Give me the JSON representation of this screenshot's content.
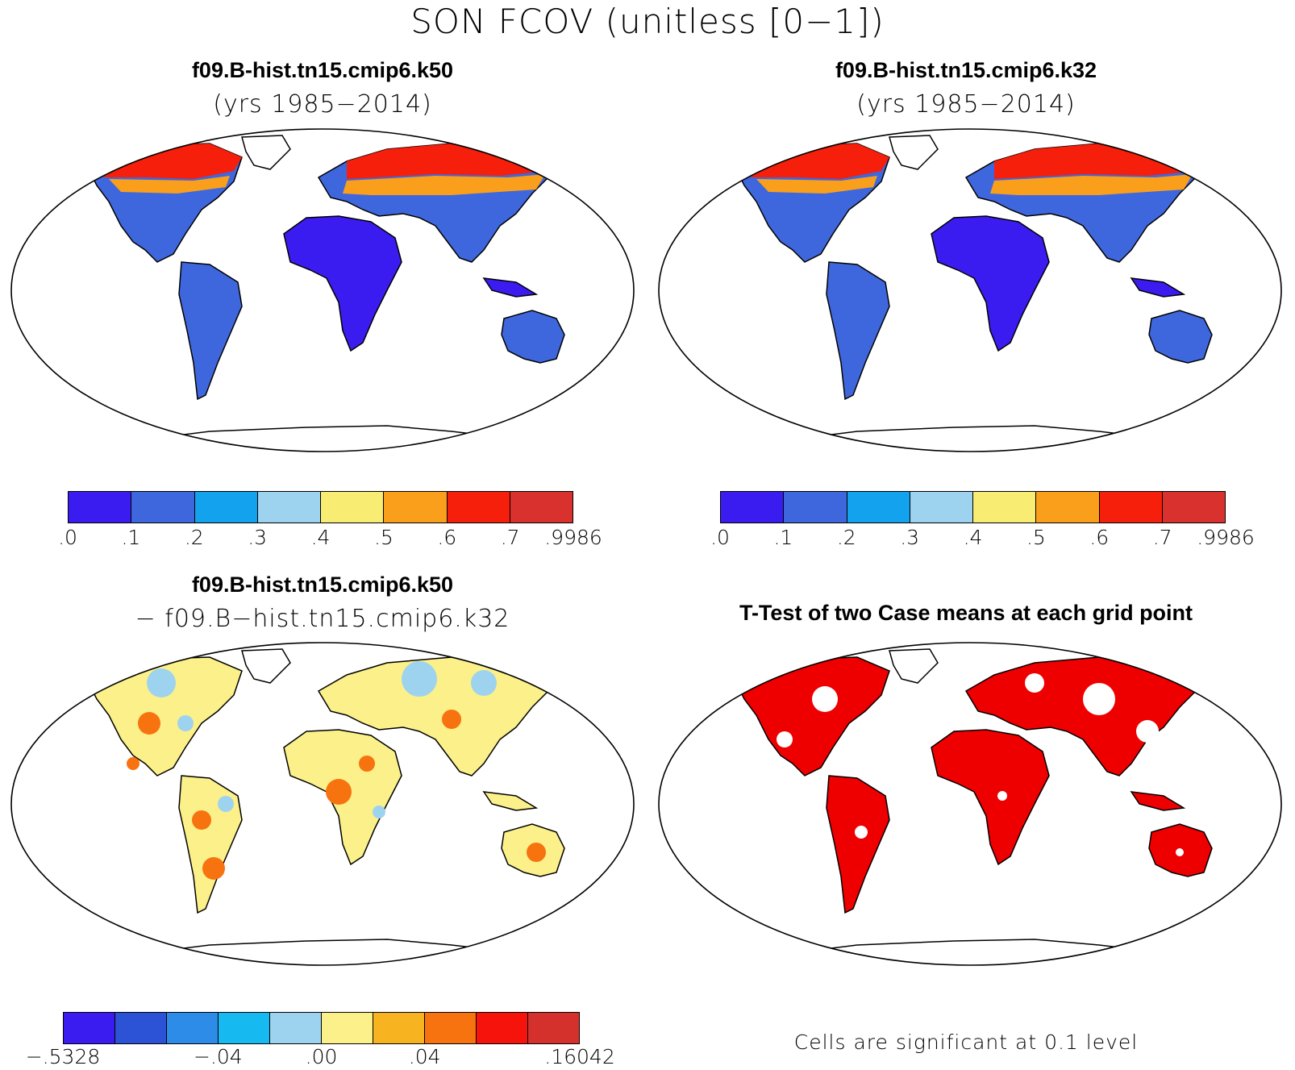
{
  "figure": {
    "title": "SON FCOV (unitless [0−1])"
  },
  "panels": {
    "top_left": {
      "title": "f09.B-hist.tn15.cmip6.k50",
      "subtitle": "(yrs 1985−2014)"
    },
    "top_right": {
      "title": "f09.B-hist.tn15.cmip6.k32",
      "subtitle": "(yrs 1985−2014)"
    },
    "bottom_left": {
      "title": "f09.B-hist.tn15.cmip6.k50",
      "subtitle": "− f09.B−hist.tn15.cmip6.k32"
    },
    "bottom_right": {
      "title": "T-Test of two Case means at each grid point",
      "note": "Cells are significant at 0.1 level"
    }
  },
  "colorbars": {
    "fcov": {
      "colors": [
        "#3b1cf0",
        "#3f67dd",
        "#13a2ee",
        "#9ed3ef",
        "#f8ec72",
        "#f99f1b",
        "#f51f0b",
        "#d9322e"
      ],
      "tick_labels": [
        ".0",
        ".1",
        ".2",
        ".3",
        ".4",
        ".5",
        ".6",
        ".7",
        ".9986"
      ]
    },
    "diff": {
      "colors": [
        "#3b1cf0",
        "#2c52d6",
        "#2d8ce8",
        "#16baf0",
        "#9ed3ef",
        "#fbf08a",
        "#f8b320",
        "#f7730f",
        "#f5130b",
        "#d4302c"
      ],
      "tick_labels": [
        "−.5328",
        "−.04",
        ".00",
        ".04",
        ".16042"
      ],
      "tick_positions": [
        0,
        3,
        5,
        7,
        10
      ]
    }
  },
  "map_colors": {
    "land_low": "#3b1cf0",
    "land_mid": "#3f67dd",
    "high_lat": "#f51f0b",
    "boreal": "#f99f1b",
    "diff_base": "#fbf08a",
    "diff_pos": "#f7730f",
    "diff_neg": "#9ed3ef",
    "significant": "#ee0000"
  }
}
